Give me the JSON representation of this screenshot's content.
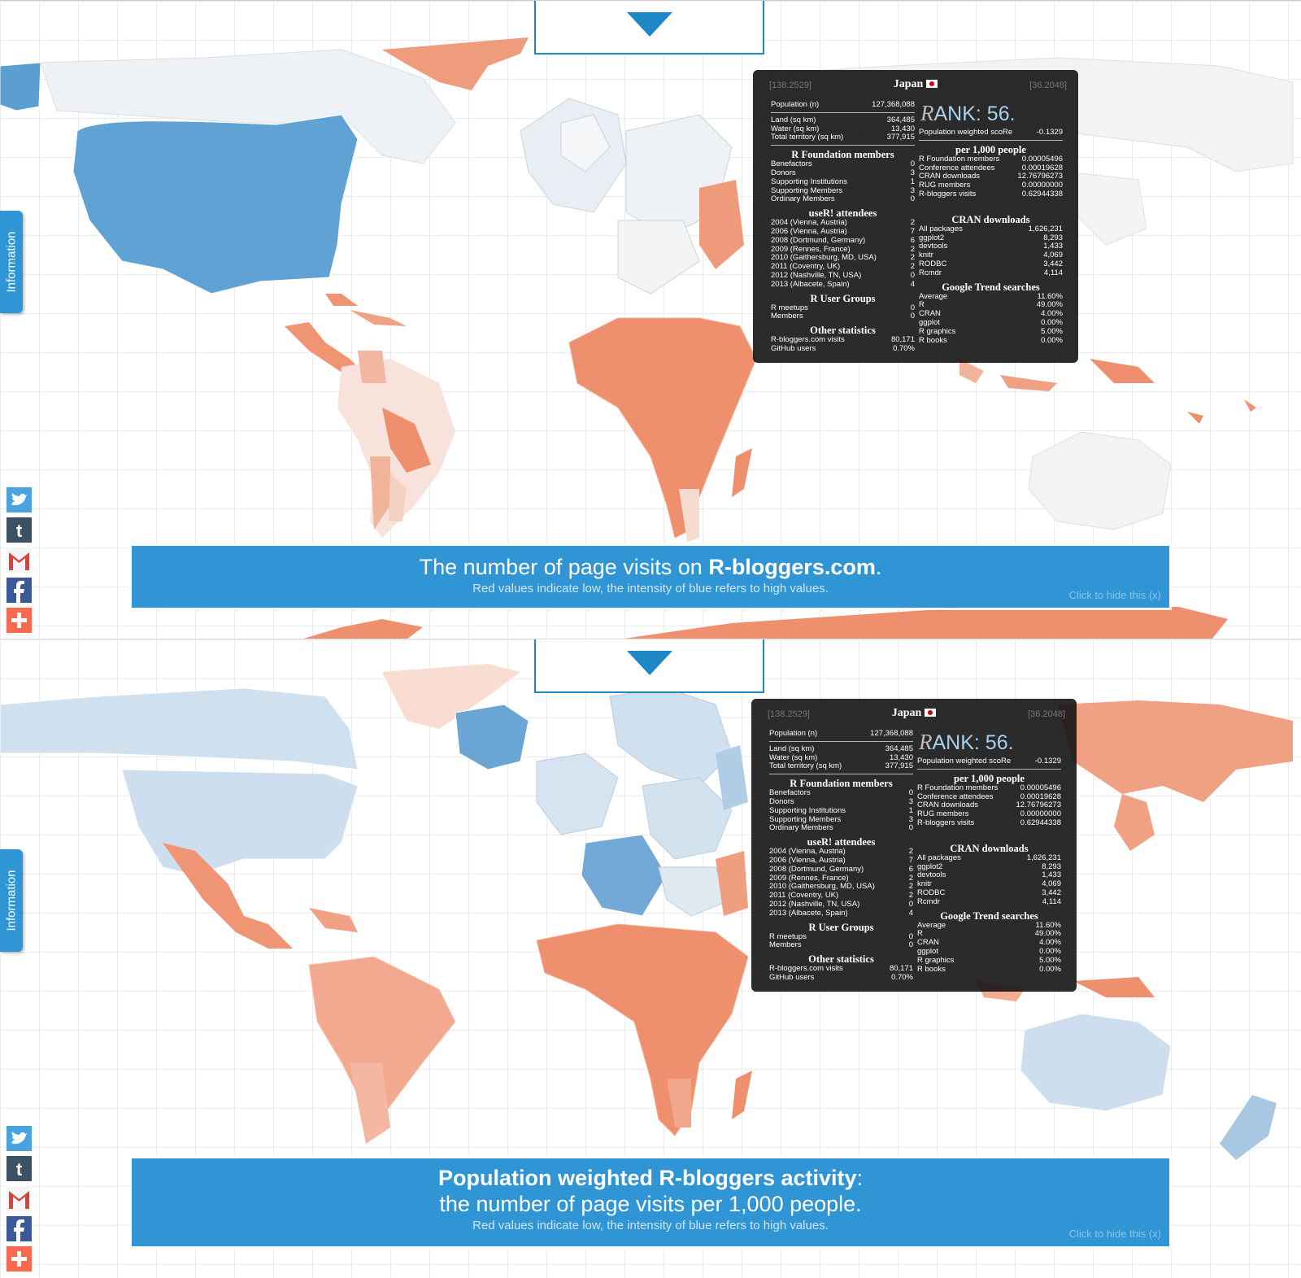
{
  "colors": {
    "accent": "#2f95d4",
    "low": "#ef8f6f",
    "high": "#4f94c9",
    "tooltip_bg": "#1a1a1a"
  },
  "info_tab": {
    "label": "Information"
  },
  "social": [
    "twitter-icon",
    "tumblr-icon",
    "gmail-icon",
    "facebook-icon",
    "addthis-icon"
  ],
  "tooltip": {
    "country": "Japan",
    "lon": "[138.2529]",
    "lat": "[36.2048]",
    "population_label": "Population (n)",
    "population": "127,368,088",
    "land_label": "Land (sq km)",
    "land": "364,485",
    "water_label": "Water (sq km)",
    "water": "13,430",
    "total_label": "Total territory (sq km)",
    "total": "377,915",
    "rank_text": "ANK: 56.",
    "rank_r": "R",
    "score_label": "Population weighted scoRe",
    "score": "-0.1329",
    "rf_title": "R Foundation members",
    "rf_rows": [
      [
        "Benefactors",
        "0"
      ],
      [
        "Donors",
        "3"
      ],
      [
        "Supporting Institutions",
        "1"
      ],
      [
        "Supporting Members",
        "3"
      ],
      [
        "Ordinary Members",
        "0"
      ]
    ],
    "user_title": "useR! attendees",
    "user_rows": [
      [
        "2004 (Vienna, Austria)",
        "2"
      ],
      [
        "2006 (Vienna, Austria)",
        "7"
      ],
      [
        "2008 (Dortmund, Germany)",
        "6"
      ],
      [
        "2009 (Rennes, France)",
        "2"
      ],
      [
        "2010 (Gaithersburg, MD, USA)",
        "2"
      ],
      [
        "2011 (Coventry, UK)",
        "2"
      ],
      [
        "2012 (Nashville, TN, USA)",
        "0"
      ],
      [
        "2013 (Albacete, Spain)",
        "4"
      ]
    ],
    "rug_title": "R User Groups",
    "rug_rows": [
      [
        "R meetups",
        "0"
      ],
      [
        "Members",
        "0"
      ]
    ],
    "other_title": "Other statistics",
    "other_rows": [
      [
        "R-bloggers.com visits",
        "80,171"
      ],
      [
        "GitHub users",
        "0.70%"
      ]
    ],
    "per_title": "per 1,000 people",
    "per_rows": [
      [
        "R Foundation members",
        "0.00005496"
      ],
      [
        "Conference attendees",
        "0.00019628"
      ],
      [
        "CRAN downloads",
        "12.76796273"
      ],
      [
        "RUG members",
        "0.00000000"
      ],
      [
        "R-bloggers visits",
        "0.62944338"
      ]
    ],
    "cran_title": "CRAN downloads",
    "cran_rows": [
      [
        "All packages",
        "1,626,231"
      ],
      [
        "ggplot2",
        "8,293"
      ],
      [
        "devtools",
        "1,433"
      ],
      [
        "knitr",
        "4,069"
      ],
      [
        "RODBC",
        "3,442"
      ],
      [
        "Rcmdr",
        "4,114"
      ]
    ],
    "trend_title": "Google Trend searches",
    "trend_rows": [
      [
        "Average",
        "11.60%"
      ],
      [
        "R",
        "49.00%"
      ],
      [
        "CRAN",
        "4.00%"
      ],
      [
        "ggplot",
        "0.00%"
      ],
      [
        "R graphics",
        "5.00%"
      ],
      [
        "R books",
        "0.00%"
      ]
    ]
  },
  "banner1": {
    "title_pre": "The number of page visits on ",
    "title_bold": "R-bloggers.com",
    "title_post": ".",
    "subtitle": "Red values indicate low, the intensity of blue refers to high values.",
    "hide": "Click to hide this (x)"
  },
  "banner2": {
    "title_bold": "Population weighted R-bloggers activity",
    "title_post": ":",
    "title_line2": "the number of page visits per 1,000 people.",
    "subtitle": "Red values indicate low, the intensity of blue refers to high values.",
    "hide": "Click to hide this (x)"
  }
}
